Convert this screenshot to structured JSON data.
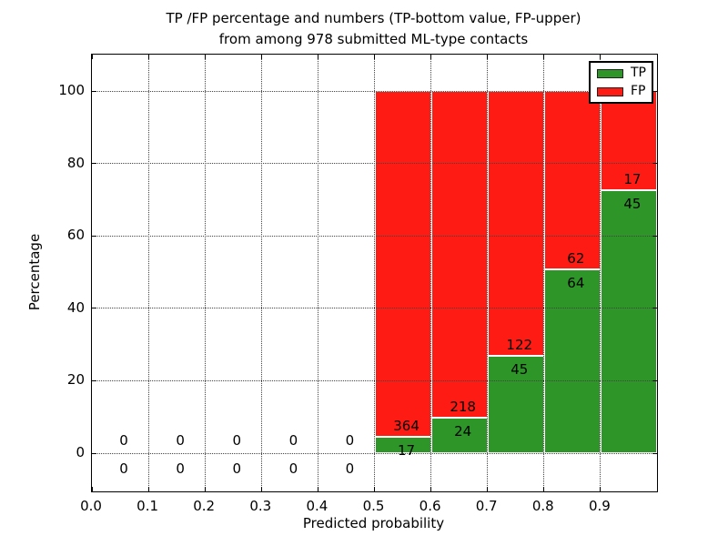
{
  "chart_data": {
    "type": "bar",
    "stacked": true,
    "title_line1": "TP /FP percentage and numbers (TP-bottom value, FP-upper)",
    "title_line2": "from among 978 submitted ML-type contacts",
    "total_contacts": 978,
    "xlabel": "Predicted probability",
    "ylabel": "Percentage",
    "xticks": [
      "0.0",
      "0.1",
      "0.2",
      "0.3",
      "0.4",
      "0.5",
      "0.6",
      "0.7",
      "0.8",
      "0.9"
    ],
    "yticks": [
      0,
      20,
      40,
      60,
      80,
      100
    ],
    "xlim": [
      0.0,
      1.0
    ],
    "ylim": [
      -10.5,
      110
    ],
    "grid": "dotted",
    "colors": {
      "tp": "#2e9629",
      "fp": "#fe1b14"
    },
    "legend": [
      {
        "label": "TP",
        "color": "#2e9629"
      },
      {
        "label": "FP",
        "color": "#fe1b14"
      }
    ],
    "legend_position": "upper right",
    "bins": [
      {
        "x0": 0.0,
        "x1": 0.1,
        "tp": 0,
        "fp": 0
      },
      {
        "x0": 0.1,
        "x1": 0.2,
        "tp": 0,
        "fp": 0
      },
      {
        "x0": 0.2,
        "x1": 0.3,
        "tp": 0,
        "fp": 0
      },
      {
        "x0": 0.3,
        "x1": 0.4,
        "tp": 0,
        "fp": 0
      },
      {
        "x0": 0.4,
        "x1": 0.5,
        "tp": 0,
        "fp": 0
      },
      {
        "x0": 0.5,
        "x1": 0.6,
        "tp": 17,
        "fp": 364
      },
      {
        "x0": 0.6,
        "x1": 0.7,
        "tp": 24,
        "fp": 218
      },
      {
        "x0": 0.7,
        "x1": 0.8,
        "tp": 45,
        "fp": 122
      },
      {
        "x0": 0.8,
        "x1": 0.9,
        "tp": 64,
        "fp": 62
      },
      {
        "x0": 0.9,
        "x1": 1.0,
        "tp": 45,
        "fp": 17
      }
    ]
  }
}
